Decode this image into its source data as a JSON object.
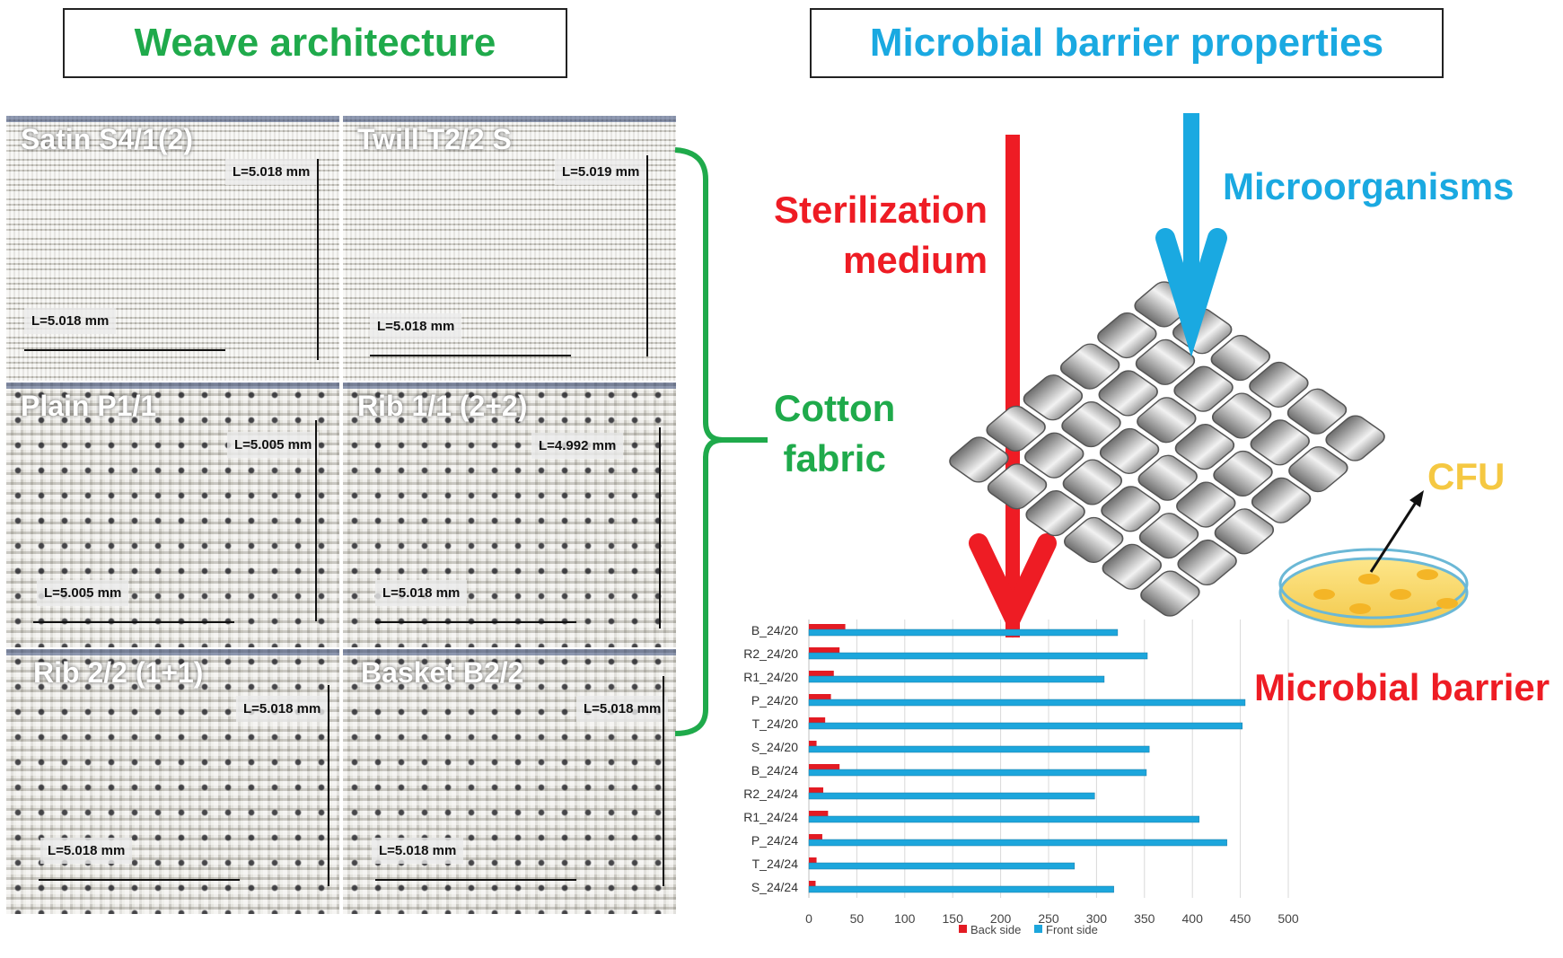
{
  "headers": {
    "left": "Weave architecture",
    "right": "Microbial barrier properties"
  },
  "panels": [
    {
      "label": "Satin S4/1(2)",
      "measure_h": "L=5.018 mm",
      "measure_v": "L=5.018 mm"
    },
    {
      "label": "Twill T2/2 S",
      "measure_h": "L=5.018 mm",
      "measure_v": "L=5.019 mm"
    },
    {
      "label": "Plain P1/1",
      "measure_h": "L=5.005 mm",
      "measure_v": "L=5.005 mm"
    },
    {
      "label": "Rib 1/1 (2+2)",
      "measure_h": "L=5.018 mm",
      "measure_v": "L=4.992 mm"
    },
    {
      "label": "Rib 2/2 (1+1)",
      "measure_h": "L=5.018 mm",
      "measure_v": "L=5.018 mm"
    },
    {
      "label": "Basket B2/2",
      "measure_h": "L=5.018 mm",
      "measure_v": "L=5.018 mm"
    }
  ],
  "labels": {
    "sterilization_line1": "Sterilization",
    "sterilization_line2": "medium",
    "microorganisms": "Microorganisms",
    "cotton_line1": "Cotton",
    "cotton_line2": "fabric",
    "cfu": "CFU",
    "microbial_barrier": "Microbial barrier"
  },
  "colors": {
    "green": "#1faa4b",
    "blue": "#1aa9e1",
    "red": "#ee1c24",
    "yellow": "#f5c842",
    "back_side": "#e31b23",
    "front_side": "#1ca6dc"
  },
  "chart_data": {
    "type": "bar",
    "orientation": "horizontal",
    "categories": [
      "B_24/20",
      "R2_24/20",
      "R1_24/20",
      "P_24/20",
      "T_24/20",
      "S_24/20",
      "B_24/24",
      "R2_24/24",
      "R1_24/24",
      "P_24/24",
      "T_24/24",
      "S_24/24"
    ],
    "series": [
      {
        "name": "Back side",
        "values": [
          38,
          32,
          26,
          23,
          17,
          8,
          32,
          15,
          20,
          14,
          8,
          7
        ]
      },
      {
        "name": "Front side",
        "values": [
          322,
          353,
          308,
          455,
          452,
          355,
          352,
          298,
          407,
          436,
          277,
          318
        ]
      }
    ],
    "xlim": [
      0,
      500
    ],
    "xticks": [
      0,
      50,
      100,
      150,
      200,
      250,
      300,
      350,
      400,
      450,
      500
    ],
    "grid": true,
    "legend": "bottom"
  }
}
